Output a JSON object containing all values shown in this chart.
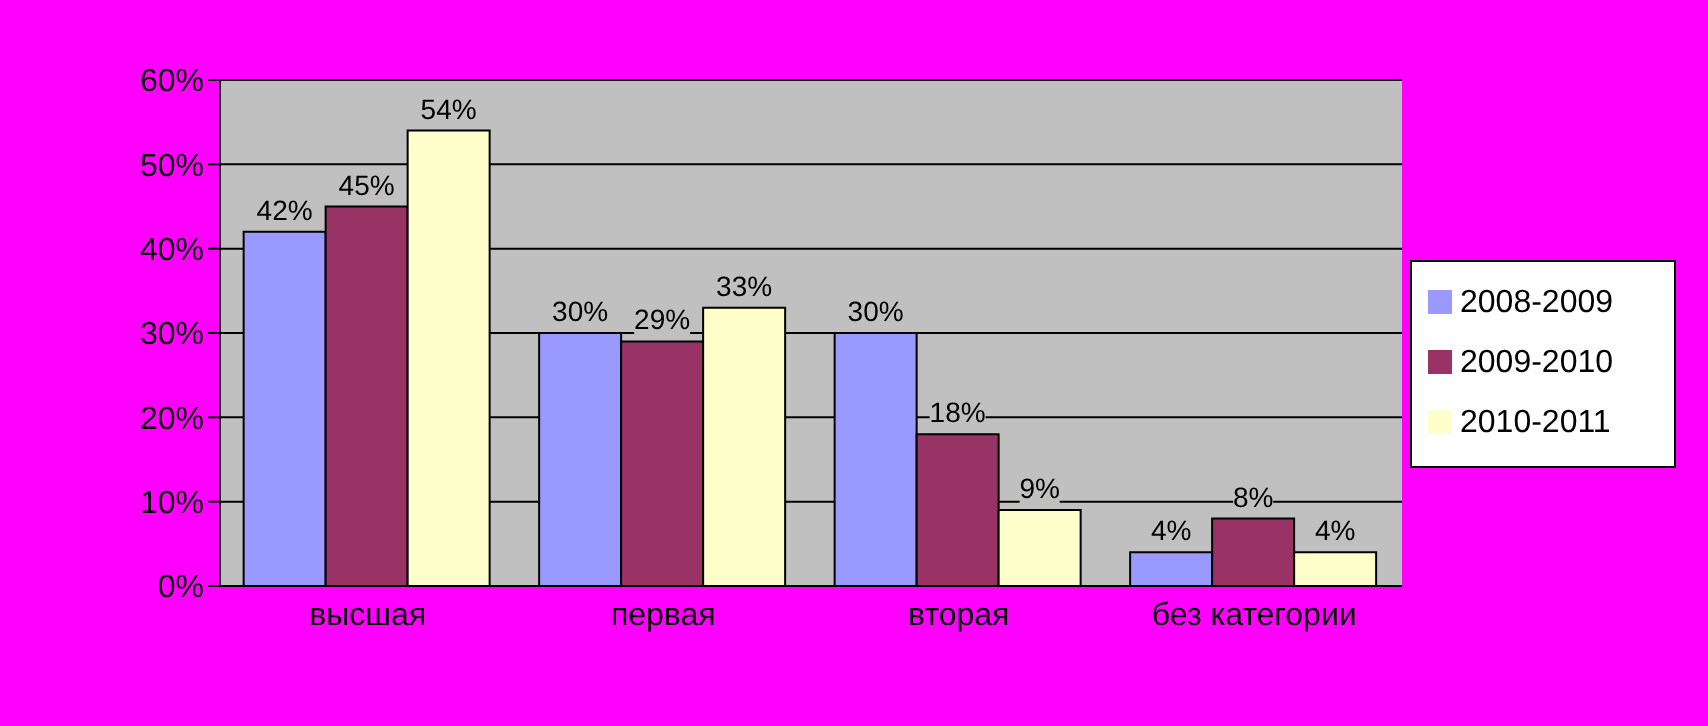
{
  "chart_data": {
    "type": "bar",
    "categories": [
      "высшая",
      "первая",
      "вторая",
      "без категории"
    ],
    "series": [
      {
        "name": "2008-2009",
        "color": "#9999ff",
        "values": [
          42,
          30,
          30,
          4
        ],
        "value_labels": [
          "42%",
          "30%",
          "30%",
          "4%"
        ]
      },
      {
        "name": "2009-2010",
        "color": "#993366",
        "values": [
          45,
          29,
          18,
          8
        ],
        "value_labels": [
          "45%",
          "29%",
          "18%",
          "8%"
        ]
      },
      {
        "name": "2010-2011",
        "color": "#ffffcc",
        "values": [
          54,
          33,
          9,
          4
        ],
        "value_labels": [
          "54%",
          "33%",
          "9%",
          "4%"
        ]
      }
    ],
    "ylim": [
      0,
      60
    ],
    "yticks": [
      {
        "value": 0,
        "label": "0%"
      },
      {
        "value": 10,
        "label": "10%"
      },
      {
        "value": 20,
        "label": "20%"
      },
      {
        "value": 30,
        "label": "30%"
      },
      {
        "value": 40,
        "label": "40%"
      },
      {
        "value": 50,
        "label": "50%"
      },
      {
        "value": 60,
        "label": "60%"
      }
    ],
    "grid": "y",
    "legend": "right"
  }
}
